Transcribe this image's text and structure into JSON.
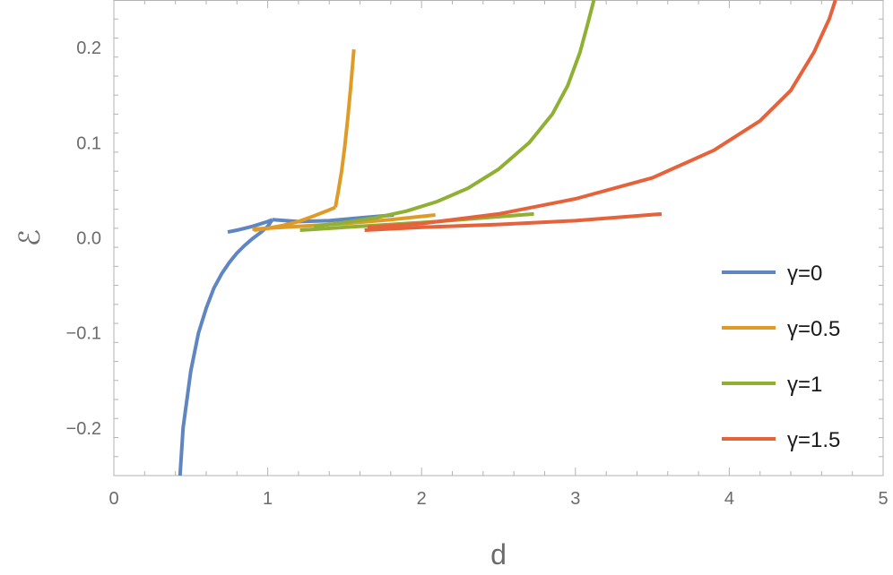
{
  "chart_data": {
    "type": "line",
    "xlabel": "d",
    "ylabel": "ℰ",
    "xlim": [
      0,
      5
    ],
    "ylim": [
      -0.25,
      0.25
    ],
    "x_ticks": [
      0,
      1,
      2,
      3,
      4,
      5
    ],
    "x_tick_labels": [
      "0",
      "1",
      "2",
      "3",
      "4",
      "5"
    ],
    "y_ticks": [
      -0.2,
      -0.1,
      0.0,
      0.1,
      0.2
    ],
    "y_tick_labels": [
      "−0.2",
      "−0.1",
      "0.0",
      "0.1",
      "0.2"
    ],
    "grid": false,
    "legend_position": "right",
    "colors": {
      "axis": "#b3b3b3",
      "text": "#6b6b6b"
    },
    "series": [
      {
        "name": "γ=0",
        "color": "#5f86c1",
        "segments": [
          [
            [
              0.43,
              -0.25
            ],
            [
              0.45,
              -0.2
            ],
            [
              0.5,
              -0.14
            ],
            [
              0.55,
              -0.1
            ],
            [
              0.6,
              -0.074
            ],
            [
              0.65,
              -0.053
            ],
            [
              0.7,
              -0.038
            ],
            [
              0.75,
              -0.026
            ],
            [
              0.8,
              -0.016
            ],
            [
              0.85,
              -0.008
            ],
            [
              0.9,
              -0.001
            ],
            [
              0.95,
              0.005
            ],
            [
              1.0,
              0.012
            ],
            [
              1.03,
              0.019
            ]
          ],
          [
            [
              0.74,
              0.006
            ],
            [
              0.8,
              0.008
            ],
            [
              0.9,
              0.012
            ],
            [
              1.0,
              0.017
            ],
            [
              1.03,
              0.019
            ]
          ],
          [
            [
              1.03,
              0.019
            ],
            [
              1.2,
              0.017
            ],
            [
              1.4,
              0.018
            ],
            [
              1.6,
              0.021
            ],
            [
              1.82,
              0.024
            ]
          ]
        ]
      },
      {
        "name": "γ=0.5",
        "color": "#e09b27",
        "segments": [
          [
            [
              0.91,
              0.008
            ],
            [
              1.0,
              0.01
            ],
            [
              1.1,
              0.013
            ],
            [
              1.2,
              0.017
            ],
            [
              1.3,
              0.023
            ],
            [
              1.38,
              0.028
            ],
            [
              1.44,
              0.032
            ]
          ],
          [
            [
              1.44,
              0.032
            ],
            [
              1.46,
              0.05
            ],
            [
              1.48,
              0.07
            ],
            [
              1.5,
              0.095
            ],
            [
              1.52,
              0.125
            ],
            [
              1.54,
              0.16
            ],
            [
              1.56,
              0.198
            ]
          ],
          [
            [
              0.9,
              0.009
            ],
            [
              1.2,
              0.012
            ],
            [
              1.5,
              0.015
            ],
            [
              1.8,
              0.019
            ],
            [
              2.09,
              0.024
            ]
          ]
        ]
      },
      {
        "name": "γ=1",
        "color": "#8fb032",
        "segments": [
          [
            [
              1.3,
              0.012
            ],
            [
              1.5,
              0.016
            ],
            [
              1.7,
              0.021
            ],
            [
              1.9,
              0.028
            ],
            [
              2.1,
              0.038
            ],
            [
              2.3,
              0.052
            ],
            [
              2.5,
              0.072
            ],
            [
              2.7,
              0.1
            ],
            [
              2.85,
              0.13
            ],
            [
              2.95,
              0.16
            ],
            [
              3.03,
              0.195
            ],
            [
              3.08,
              0.225
            ],
            [
              3.12,
              0.25
            ]
          ],
          [
            [
              1.21,
              0.008
            ],
            [
              1.5,
              0.011
            ],
            [
              1.8,
              0.014
            ],
            [
              2.1,
              0.017
            ],
            [
              2.4,
              0.021
            ],
            [
              2.73,
              0.025
            ]
          ]
        ]
      },
      {
        "name": "γ=1.5",
        "color": "#e5623a",
        "segments": [
          [
            [
              1.65,
              0.011
            ],
            [
              2.0,
              0.015
            ],
            [
              2.5,
              0.025
            ],
            [
              3.0,
              0.041
            ],
            [
              3.5,
              0.063
            ],
            [
              3.9,
              0.092
            ],
            [
              4.2,
              0.123
            ],
            [
              4.4,
              0.155
            ],
            [
              4.55,
              0.195
            ],
            [
              4.65,
              0.23
            ],
            [
              4.69,
              0.25
            ]
          ],
          [
            [
              1.63,
              0.008
            ],
            [
              2.0,
              0.011
            ],
            [
              2.5,
              0.014
            ],
            [
              3.0,
              0.018
            ],
            [
              3.56,
              0.025
            ]
          ]
        ]
      }
    ]
  }
}
